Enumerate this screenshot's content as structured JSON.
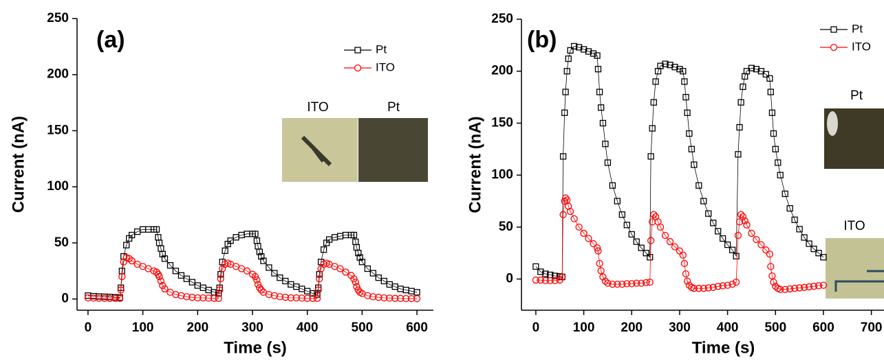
{
  "chart_data": [
    {
      "type": "line",
      "panel_label": "(a)",
      "x_label": "Time (s)",
      "y_label": "Current (nA)",
      "xlim": [
        -20,
        630
      ],
      "ylim": [
        -10,
        250
      ],
      "xticks": [
        0,
        100,
        200,
        300,
        400,
        500,
        600
      ],
      "yticks": [
        0,
        50,
        100,
        150,
        200,
        250
      ],
      "legend": "upper right",
      "inset_labels": [
        "ITO",
        "Pt"
      ],
      "series": [
        {
          "name": "Pt",
          "color": "#000000",
          "marker": "square",
          "x": [
            0,
            10,
            20,
            30,
            40,
            50,
            58,
            60,
            62,
            65,
            70,
            75,
            80,
            90,
            100,
            110,
            120,
            125,
            128,
            130,
            133,
            136,
            140,
            150,
            160,
            170,
            180,
            190,
            200,
            210,
            220,
            230,
            238,
            240,
            242,
            245,
            250,
            255,
            260,
            270,
            280,
            290,
            300,
            305,
            308,
            310,
            313,
            316,
            320,
            330,
            340,
            350,
            360,
            370,
            380,
            390,
            400,
            410,
            418,
            420,
            422,
            425,
            430,
            435,
            440,
            450,
            460,
            470,
            480,
            485,
            488,
            490,
            493,
            496,
            500,
            510,
            520,
            530,
            540,
            550,
            560,
            570,
            580,
            590,
            600
          ],
          "values": [
            3,
            2.5,
            2.2,
            2,
            1.8,
            1.5,
            1.3,
            10,
            25,
            38,
            48,
            54,
            57,
            60,
            62,
            62,
            62,
            62,
            55,
            50,
            45,
            40,
            36,
            30,
            25,
            21,
            18,
            15,
            12,
            10,
            8,
            6,
            5,
            10,
            22,
            33,
            43,
            49,
            52,
            55,
            57,
            58,
            58,
            58,
            52,
            47,
            42,
            38,
            34,
            28,
            23,
            19,
            16,
            13,
            11,
            9,
            7,
            5,
            4,
            10,
            22,
            33,
            44,
            50,
            53,
            55,
            56,
            57,
            57,
            57,
            51,
            46,
            41,
            37,
            33,
            27,
            23,
            19,
            16,
            13,
            11,
            9,
            8,
            7,
            6
          ]
        },
        {
          "name": "ITO",
          "color": "#ff0000",
          "marker": "circle",
          "x": [
            0,
            10,
            20,
            30,
            40,
            50,
            58,
            60,
            62,
            65,
            70,
            75,
            80,
            90,
            100,
            110,
            120,
            125,
            128,
            130,
            133,
            136,
            140,
            150,
            160,
            170,
            180,
            190,
            200,
            210,
            220,
            230,
            238,
            240,
            242,
            245,
            250,
            255,
            260,
            270,
            280,
            290,
            300,
            305,
            308,
            310,
            313,
            316,
            320,
            330,
            340,
            350,
            360,
            370,
            380,
            390,
            400,
            410,
            418,
            420,
            422,
            425,
            430,
            435,
            440,
            450,
            460,
            470,
            480,
            485,
            488,
            490,
            493,
            496,
            500,
            510,
            520,
            530,
            540,
            550,
            560,
            570,
            580,
            590,
            600
          ],
          "values": [
            1,
            0.8,
            0.7,
            0.6,
            0.5,
            0.5,
            0.5,
            8,
            20,
            33,
            37,
            36,
            34,
            31,
            29,
            27,
            25,
            24,
            22,
            20,
            16,
            12,
            9,
            6,
            4,
            3,
            2,
            1.5,
            1,
            1,
            0.8,
            0.6,
            0.5,
            8,
            18,
            27,
            31,
            32,
            31,
            29,
            27,
            25,
            22,
            20,
            17,
            13,
            10,
            8,
            6,
            4,
            3,
            2,
            1.5,
            1,
            1,
            0.8,
            0.6,
            0.5,
            0.5,
            8,
            18,
            27,
            31,
            32,
            31,
            29,
            27,
            24,
            21,
            18,
            15,
            11,
            8,
            6,
            5,
            3,
            2,
            1.5,
            1,
            0.8,
            0.6,
            0.5,
            0.4,
            0.3,
            0.3
          ]
        }
      ]
    },
    {
      "type": "line",
      "panel_label": "(b)",
      "x_label": "Time (s)",
      "y_label": "Current (nA)",
      "xlim": [
        -30,
        745
      ],
      "ylim": [
        -30,
        250
      ],
      "xticks": [
        0,
        100,
        200,
        300,
        400,
        500,
        600,
        700
      ],
      "yticks": [
        0,
        50,
        100,
        150,
        200,
        250
      ],
      "legend": "upper right",
      "inset_labels": [
        "Pt",
        "ITO"
      ],
      "series": [
        {
          "name": "Pt",
          "color": "#000000",
          "marker": "square",
          "x": [
            0,
            10,
            20,
            30,
            40,
            50,
            55,
            57,
            60,
            62,
            65,
            68,
            72,
            80,
            90,
            100,
            110,
            120,
            128,
            130,
            133,
            136,
            140,
            145,
            150,
            160,
            170,
            180,
            190,
            200,
            210,
            220,
            230,
            238,
            240,
            243,
            246,
            250,
            255,
            260,
            270,
            280,
            290,
            300,
            307,
            310,
            313,
            316,
            320,
            325,
            330,
            340,
            350,
            360,
            370,
            380,
            390,
            400,
            410,
            418,
            422,
            425,
            428,
            432,
            436,
            440,
            450,
            460,
            470,
            480,
            488,
            490,
            493,
            496,
            500,
            505,
            510,
            520,
            530,
            540,
            550,
            560,
            570,
            580,
            590,
            600
          ],
          "values": [
            12,
            7,
            5,
            4,
            3,
            2.5,
            2,
            118,
            160,
            180,
            200,
            212,
            220,
            224,
            223,
            221,
            219,
            217,
            215,
            202,
            180,
            165,
            150,
            130,
            112,
            90,
            75,
            62,
            52,
            43,
            36,
            30,
            25,
            21,
            118,
            145,
            170,
            190,
            200,
            205,
            207,
            206,
            204,
            202,
            200,
            190,
            175,
            160,
            140,
            125,
            110,
            90,
            75,
            63,
            54,
            46,
            39,
            33,
            28,
            22,
            120,
            146,
            170,
            185,
            195,
            200,
            203,
            202,
            200,
            197,
            193,
            180,
            160,
            140,
            125,
            112,
            100,
            82,
            68,
            57,
            48,
            40,
            34,
            29,
            25,
            21
          ]
        },
        {
          "name": "ITO",
          "color": "#ff0000",
          "marker": "circle",
          "x": [
            0,
            10,
            20,
            30,
            40,
            50,
            55,
            57,
            60,
            62,
            65,
            68,
            72,
            80,
            90,
            100,
            110,
            120,
            128,
            130,
            133,
            136,
            140,
            145,
            150,
            160,
            170,
            180,
            190,
            200,
            210,
            220,
            230,
            238,
            240,
            243,
            246,
            250,
            255,
            260,
            270,
            280,
            290,
            300,
            307,
            310,
            313,
            316,
            320,
            325,
            330,
            340,
            350,
            360,
            370,
            380,
            390,
            400,
            410,
            418,
            422,
            425,
            428,
            432,
            436,
            440,
            450,
            460,
            470,
            480,
            488,
            490,
            493,
            496,
            500,
            505,
            510,
            520,
            530,
            540,
            550,
            560,
            570,
            580,
            590,
            600
          ],
          "values": [
            -1,
            -1,
            -1.5,
            -1.5,
            -1.5,
            -1,
            2,
            62,
            75,
            78,
            76,
            70,
            65,
            58,
            50,
            44,
            39,
            34,
            30,
            27,
            15,
            8,
            2,
            -2,
            -4,
            -5,
            -5,
            -5,
            -4.5,
            -4.5,
            -4,
            -4,
            -3.5,
            -3,
            37,
            55,
            62,
            60,
            55,
            50,
            42,
            36,
            31,
            27,
            23,
            15,
            5,
            -2,
            -6,
            -8,
            -9,
            -9,
            -9,
            -8.5,
            -8,
            -7,
            -6.5,
            -6,
            -5,
            -3,
            42,
            55,
            62,
            60,
            56,
            52,
            44,
            38,
            33,
            28,
            24,
            12,
            3,
            -3,
            -7,
            -9,
            -10,
            -10,
            -9.5,
            -9,
            -8.5,
            -8,
            -7.5,
            -7,
            -6.5,
            -6
          ]
        }
      ]
    }
  ]
}
